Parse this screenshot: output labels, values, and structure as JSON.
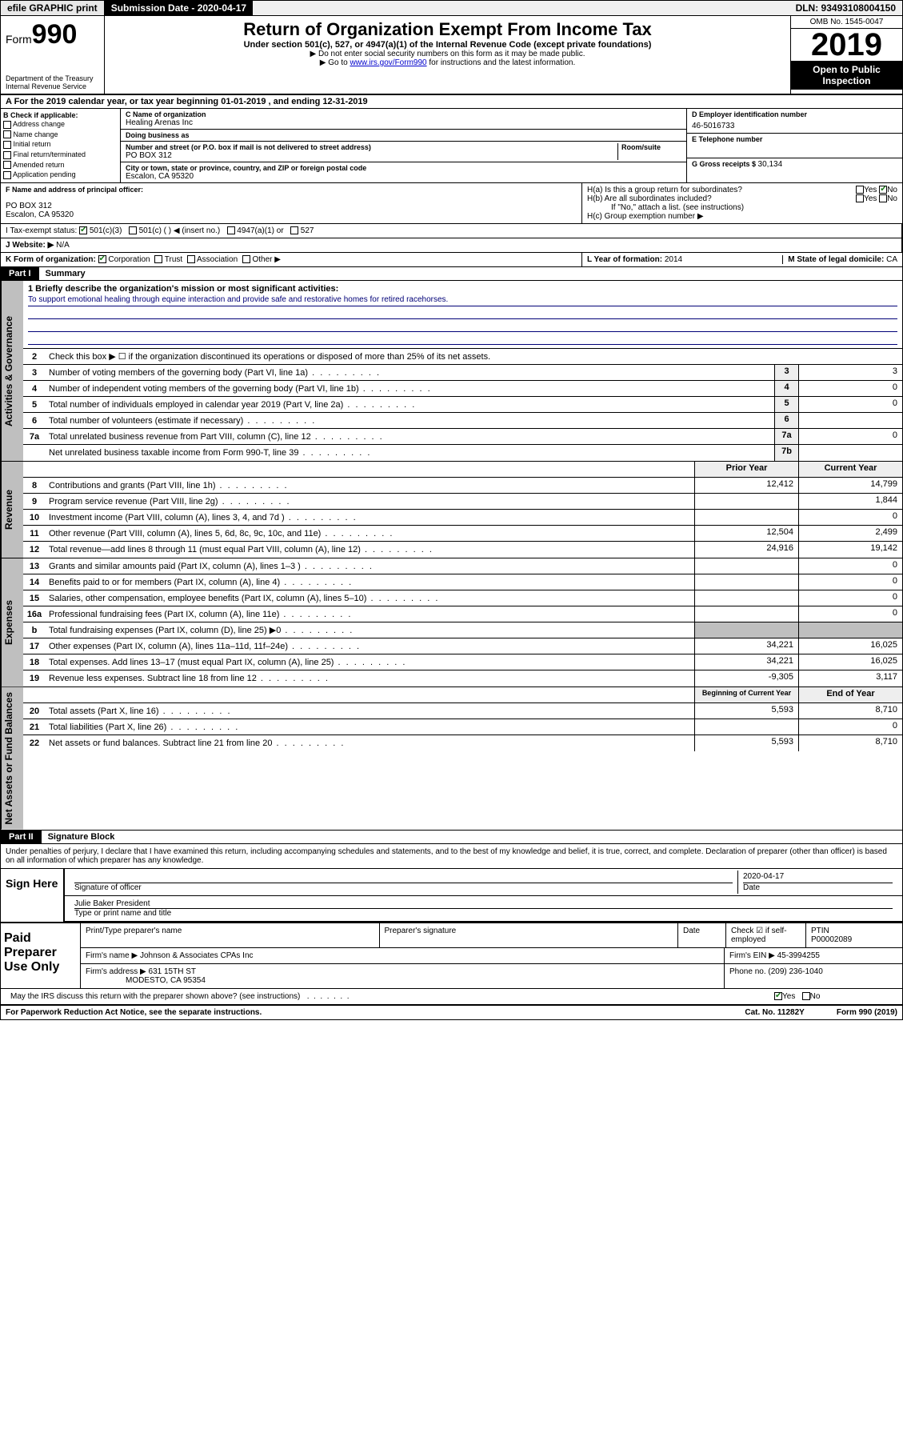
{
  "topbar": {
    "efile": "efile GRAPHIC print",
    "submission_label": "Submission Date - 2020-04-17",
    "dln": "DLN: 93493108004150"
  },
  "header": {
    "form_prefix": "Form",
    "form_number": "990",
    "title": "Return of Organization Exempt From Income Tax",
    "subtitle": "Under section 501(c), 527, or 4947(a)(1) of the Internal Revenue Code (except private foundations)",
    "note1": "▶ Do not enter social security numbers on this form as it may be made public.",
    "note2_pre": "▶ Go to ",
    "note2_link": "www.irs.gov/Form990",
    "note2_post": " for instructions and the latest information.",
    "dept": "Department of the Treasury\nInternal Revenue Service",
    "omb": "OMB No. 1545-0047",
    "year": "2019",
    "inspect": "Open to Public Inspection"
  },
  "period": {
    "text_pre": "A For the 2019 calendar year, or tax year beginning ",
    "begin": "01-01-2019",
    "mid": " , and ending ",
    "end": "12-31-2019"
  },
  "checkboxes": {
    "label": "B Check if applicable:",
    "items": [
      "Address change",
      "Name change",
      "Initial return",
      "Final return/terminated",
      "Amended return",
      "Application pending"
    ]
  },
  "entity": {
    "name_label": "C Name of organization",
    "name": "Healing Arenas Inc",
    "dba_label": "Doing business as",
    "dba": "",
    "addr_label": "Number and street (or P.O. box if mail is not delivered to street address)",
    "room_label": "Room/suite",
    "addr": "PO BOX 312",
    "city_label": "City or town, state or province, country, and ZIP or foreign postal code",
    "city": "Escalon, CA  95320",
    "officer_label": "F Name and address of principal officer:",
    "officer_addr1": "PO BOX 312",
    "officer_addr2": "Escalon, CA  95320"
  },
  "right": {
    "ein_label": "D Employer identification number",
    "ein": "46-5016733",
    "phone_label": "E Telephone number",
    "phone": "",
    "receipts_label": "G Gross receipts $ ",
    "receipts": "30,134",
    "ha_label": "H(a)  Is this a group return for subordinates?",
    "hb_label": "H(b)  Are all subordinates included?",
    "hb_note": "If \"No,\" attach a list. (see instructions)",
    "hc_label": "H(c)  Group exemption number ▶",
    "yes": "Yes",
    "no": "No"
  },
  "tax_status": {
    "label": "I   Tax-exempt status:",
    "opt1": "501(c)(3)",
    "opt2": "501(c) (   ) ◀ (insert no.)",
    "opt3": "4947(a)(1) or",
    "opt4": "527"
  },
  "website": {
    "label": "J   Website: ▶",
    "value": "N/A"
  },
  "org_form": {
    "label": "K Form of organization:",
    "corp": "Corporation",
    "trust": "Trust",
    "assoc": "Association",
    "other": "Other ▶",
    "year_label": "L Year of formation: ",
    "year": "2014",
    "state_label": "M State of legal domicile: ",
    "state": "CA"
  },
  "parts": {
    "p1_tab": "Part I",
    "p1_title": "Summary",
    "p2_tab": "Part II",
    "p2_title": "Signature Block"
  },
  "sections": {
    "ag": "Activities & Governance",
    "rev": "Revenue",
    "exp": "Expenses",
    "na": "Net Assets or Fund Balances"
  },
  "summary": {
    "line1_label": "1  Briefly describe the organization's mission or most significant activities:",
    "mission": "To support emotional healing through equine interaction and provide safe and restorative homes for retired racehorses.",
    "line2": "Check this box ▶ ☐  if the organization discontinued its operations or disposed of more than 25% of its net assets.",
    "rows_ag": [
      {
        "n": "3",
        "d": "Number of voting members of the governing body (Part VI, line 1a)",
        "b": "3",
        "v": "3"
      },
      {
        "n": "4",
        "d": "Number of independent voting members of the governing body (Part VI, line 1b)",
        "b": "4",
        "v": "0"
      },
      {
        "n": "5",
        "d": "Total number of individuals employed in calendar year 2019 (Part V, line 2a)",
        "b": "5",
        "v": "0"
      },
      {
        "n": "6",
        "d": "Total number of volunteers (estimate if necessary)",
        "b": "6",
        "v": ""
      },
      {
        "n": "7a",
        "d": "Total unrelated business revenue from Part VIII, column (C), line 12",
        "b": "7a",
        "v": "0"
      },
      {
        "n": "",
        "d": "Net unrelated business taxable income from Form 990-T, line 39",
        "b": "7b",
        "v": ""
      }
    ],
    "hdr_prior": "Prior Year",
    "hdr_current": "Current Year",
    "rows_rev": [
      {
        "n": "8",
        "d": "Contributions and grants (Part VIII, line 1h)",
        "p": "12,412",
        "c": "14,799"
      },
      {
        "n": "9",
        "d": "Program service revenue (Part VIII, line 2g)",
        "p": "",
        "c": "1,844"
      },
      {
        "n": "10",
        "d": "Investment income (Part VIII, column (A), lines 3, 4, and 7d )",
        "p": "",
        "c": "0"
      },
      {
        "n": "11",
        "d": "Other revenue (Part VIII, column (A), lines 5, 6d, 8c, 9c, 10c, and 11e)",
        "p": "12,504",
        "c": "2,499"
      },
      {
        "n": "12",
        "d": "Total revenue—add lines 8 through 11 (must equal Part VIII, column (A), line 12)",
        "p": "24,916",
        "c": "19,142"
      }
    ],
    "rows_exp": [
      {
        "n": "13",
        "d": "Grants and similar amounts paid (Part IX, column (A), lines 1–3 )",
        "p": "",
        "c": "0"
      },
      {
        "n": "14",
        "d": "Benefits paid to or for members (Part IX, column (A), line 4)",
        "p": "",
        "c": "0"
      },
      {
        "n": "15",
        "d": "Salaries, other compensation, employee benefits (Part IX, column (A), lines 5–10)",
        "p": "",
        "c": "0"
      },
      {
        "n": "16a",
        "d": "Professional fundraising fees (Part IX, column (A), line 11e)",
        "p": "",
        "c": "0"
      },
      {
        "n": "b",
        "d": "Total fundraising expenses (Part IX, column (D), line 25) ▶0",
        "p": "shade",
        "c": "shade"
      },
      {
        "n": "17",
        "d": "Other expenses (Part IX, column (A), lines 11a–11d, 11f–24e)",
        "p": "34,221",
        "c": "16,025"
      },
      {
        "n": "18",
        "d": "Total expenses. Add lines 13–17 (must equal Part IX, column (A), line 25)",
        "p": "34,221",
        "c": "16,025"
      },
      {
        "n": "19",
        "d": "Revenue less expenses. Subtract line 18 from line 12",
        "p": "-9,305",
        "c": "3,117"
      }
    ],
    "hdr_begin": "Beginning of Current Year",
    "hdr_end": "End of Year",
    "rows_na": [
      {
        "n": "20",
        "d": "Total assets (Part X, line 16)",
        "p": "5,593",
        "c": "8,710"
      },
      {
        "n": "21",
        "d": "Total liabilities (Part X, line 26)",
        "p": "",
        "c": "0"
      },
      {
        "n": "22",
        "d": "Net assets or fund balances. Subtract line 21 from line 20",
        "p": "5,593",
        "c": "8,710"
      }
    ]
  },
  "perjury": "Under penalties of perjury, I declare that I have examined this return, including accompanying schedules and statements, and to the best of my knowledge and belief, it is true, correct, and complete. Declaration of preparer (other than officer) is based on all information of which preparer has any knowledge.",
  "sign": {
    "label": "Sign Here",
    "sig_of_officer": "Signature of officer",
    "date_label": "Date",
    "date": "2020-04-17",
    "name_title": "Julie Baker  President",
    "type_label": "Type or print name and title"
  },
  "preparer": {
    "label": "Paid Preparer Use Only",
    "print_name": "Print/Type preparer's name",
    "sig": "Preparer's signature",
    "date": "Date",
    "check_self": "Check ☑ if self-employed",
    "ptin_label": "PTIN",
    "ptin": "P00002089",
    "firm_name_label": "Firm's name    ▶",
    "firm_name": "Johnson & Associates CPAs Inc",
    "firm_ein_label": "Firm's EIN ▶",
    "firm_ein": "45-3994255",
    "firm_addr_label": "Firm's address ▶",
    "firm_addr1": "631 15TH ST",
    "firm_addr2": "MODESTO, CA  95354",
    "phone_label": "Phone no. ",
    "phone": "(209) 236-1040"
  },
  "discuss": {
    "text": "May the IRS discuss this return with the preparer shown above? (see instructions)",
    "yes": "Yes",
    "no": "No"
  },
  "footer": {
    "left": "For Paperwork Reduction Act Notice, see the separate instructions.",
    "mid": "Cat. No. 11282Y",
    "right": "Form 990 (2019)"
  }
}
